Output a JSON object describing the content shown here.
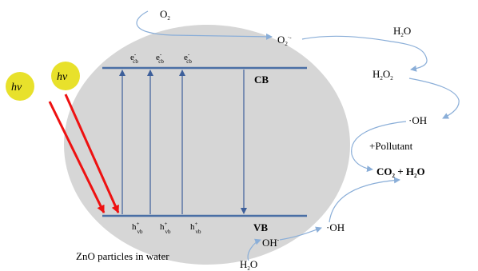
{
  "photon": {
    "label": "hν"
  },
  "bands": {
    "cb": "CB",
    "vb": "VB"
  },
  "electron": {
    "symbol": "e",
    "sup": "-",
    "sub": "cb"
  },
  "hole": {
    "symbol": "h",
    "sup": "+",
    "sub": "vb"
  },
  "particle_caption": "ZnO particles in water",
  "species": {
    "o2": {
      "base": "O",
      "sub": "2"
    },
    "o2_radical": {
      "base": "O",
      "sub": "2",
      "sup": "·-"
    },
    "h2o_top": {
      "base": "H",
      "sub": "2",
      "rest": "O"
    },
    "h2o2": {
      "base1": "H",
      "sub1": "2",
      "base2": "O",
      "sub2": "2"
    },
    "oh_radical_right": "·OH",
    "pollutant": "+Pollutant",
    "products": {
      "co": "CO",
      "co_sub": "2",
      "plus": " + ",
      "h": "H",
      "h_sub": "2",
      "o": "O"
    },
    "oh_radical_bottom": "·OH",
    "oh_minus": {
      "base": "OH",
      "sup": "-"
    },
    "h2o_bottom": {
      "base": "H",
      "sub": "2",
      "rest": "O"
    }
  },
  "colors": {
    "particle": "#d6d6d6",
    "band_line": "#4a6fa5",
    "transition_arrow": "#3d5f9a",
    "photon_arrow": "#ee1111",
    "photon_ball": "#e8e12b",
    "flow_arrow": "#8aaed8"
  }
}
